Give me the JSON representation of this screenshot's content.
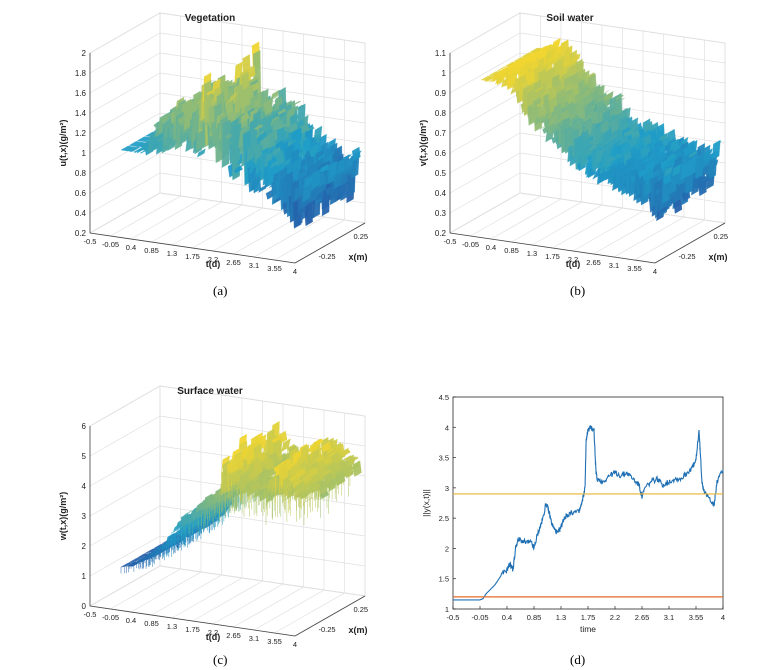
{
  "captions": {
    "a": "(a)",
    "b": "(b)",
    "c": "(c)",
    "d": "(d)"
  },
  "colors": {
    "surface_low": "#2c2a8f",
    "surface_mid": "#1f9ec9",
    "surface_high": "#f2d630",
    "line_blue": "#1f6fb4",
    "line_yellow": "#eab530",
    "line_orange": "#e46a2a",
    "grid": "#e0e0e0",
    "axis": "#444444"
  },
  "chart_data": [
    {
      "id": "a",
      "type": "area",
      "title": "Vegetation",
      "xlabel": "t(d)",
      "ylabel": "x(m)",
      "zlabel": "u(t,x)(g/m²)",
      "x_ticks": [
        "-0.5",
        "-0.05",
        "0.4",
        "0.85",
        "1.3",
        "1.75",
        "2.2",
        "2.65",
        "3.1",
        "3.55",
        "4"
      ],
      "y_ticks": [
        "-0.25",
        "0.25"
      ],
      "z_ticks": [
        "0.2",
        "0.4",
        "0.6",
        "0.8",
        "1",
        "1.2",
        "1.4",
        "1.6",
        "1.8",
        "2"
      ],
      "xlim": [
        -0.5,
        4
      ],
      "zlim": [
        0.2,
        2
      ],
      "grid": true,
      "profile": {
        "t": [
          -0.05,
          0.1,
          0.3,
          0.5,
          0.7,
          0.85,
          1.0,
          1.2,
          1.4,
          1.6,
          1.75,
          1.9,
          2.1,
          2.3,
          2.5,
          2.7,
          2.9,
          3.1,
          3.3,
          3.5,
          3.7,
          3.85,
          4.0
        ],
        "mean": [
          1.0,
          1.0,
          1.0,
          1.05,
          1.15,
          1.2,
          1.25,
          1.3,
          1.35,
          1.3,
          1.4,
          1.35,
          1.3,
          1.25,
          1.15,
          1.05,
          1.0,
          0.95,
          0.9,
          0.85,
          0.8,
          0.75,
          1.0
        ],
        "max": [
          1.0,
          1.0,
          1.02,
          1.15,
          1.35,
          1.45,
          1.55,
          1.5,
          1.6,
          1.5,
          1.95,
          1.7,
          1.55,
          1.5,
          1.5,
          1.4,
          1.3,
          1.2,
          1.15,
          1.05,
          1.0,
          0.9,
          1.05
        ],
        "min": [
          1.0,
          1.0,
          0.98,
          0.95,
          0.95,
          1.0,
          1.0,
          1.05,
          1.05,
          1.0,
          1.0,
          0.95,
          0.95,
          0.85,
          0.8,
          0.75,
          0.7,
          0.65,
          0.6,
          0.55,
          0.45,
          0.4,
          0.9
        ]
      }
    },
    {
      "id": "b",
      "type": "area",
      "title": "Soil water",
      "xlabel": "t(d)",
      "ylabel": "x(m)",
      "zlabel": "v(t,x)(g/m²)",
      "x_ticks": [
        "-0.5",
        "-0.05",
        "0.4",
        "0.85",
        "1.3",
        "1.75",
        "2.2",
        "2.65",
        "3.1",
        "3.55",
        "4"
      ],
      "y_ticks": [
        "-0.25",
        "0.25"
      ],
      "z_ticks": [
        "0.2",
        "0.3",
        "0.4",
        "0.5",
        "0.6",
        "0.7",
        "0.8",
        "0.9",
        "1",
        "1.1"
      ],
      "xlim": [
        -0.5,
        4
      ],
      "zlim": [
        0.2,
        1.1
      ],
      "grid": true,
      "profile": {
        "t": [
          -0.05,
          0.1,
          0.3,
          0.5,
          0.7,
          0.85,
          1.0,
          1.2,
          1.4,
          1.6,
          1.75,
          1.9,
          2.1,
          2.3,
          2.5,
          2.7,
          2.9,
          3.1,
          3.3,
          3.5,
          3.7,
          3.85,
          4.0
        ],
        "mean": [
          0.95,
          0.95,
          0.96,
          0.97,
          0.95,
          0.9,
          0.85,
          0.8,
          0.77,
          0.74,
          0.72,
          0.68,
          0.66,
          0.63,
          0.61,
          0.6,
          0.58,
          0.56,
          0.55,
          0.53,
          0.52,
          0.5,
          0.6
        ],
        "max": [
          0.95,
          0.96,
          1.0,
          1.05,
          1.02,
          0.98,
          0.93,
          0.88,
          0.85,
          0.82,
          0.82,
          0.77,
          0.73,
          0.7,
          0.69,
          0.68,
          0.66,
          0.65,
          0.64,
          0.62,
          0.62,
          0.58,
          0.65
        ],
        "min": [
          0.95,
          0.94,
          0.93,
          0.9,
          0.86,
          0.8,
          0.74,
          0.7,
          0.67,
          0.64,
          0.6,
          0.57,
          0.55,
          0.52,
          0.5,
          0.49,
          0.48,
          0.46,
          0.44,
          0.42,
          0.38,
          0.35,
          0.55
        ]
      }
    },
    {
      "id": "c",
      "type": "area",
      "title": "Surface water",
      "xlabel": "t(d)",
      "ylabel": "x(m)",
      "zlabel": "w(t,x)(g/m²)",
      "x_ticks": [
        "-0.5",
        "-0.05",
        "0.4",
        "0.85",
        "1.3",
        "1.75",
        "2.2",
        "2.65",
        "3.1",
        "3.55",
        "4"
      ],
      "y_ticks": [
        "-0.25",
        "0.25"
      ],
      "z_ticks": [
        "0",
        "1",
        "2",
        "3",
        "4",
        "5",
        "6"
      ],
      "xlim": [
        -0.5,
        4
      ],
      "zlim": [
        0,
        6
      ],
      "grid": true,
      "profile": {
        "t": [
          -0.05,
          0.2,
          0.4,
          0.6,
          0.85,
          1.0,
          1.2,
          1.3,
          1.5,
          1.75,
          1.9,
          2.1,
          2.2,
          2.4,
          2.65,
          2.9,
          3.1,
          3.3,
          3.55,
          3.8,
          4.0
        ],
        "mean": [
          1.2,
          1.3,
          1.5,
          1.7,
          2.0,
          2.3,
          2.7,
          3.0,
          3.2,
          3.6,
          3.8,
          4.0,
          4.3,
          4.5,
          4.4,
          4.4,
          4.2,
          4.4,
          4.6,
          4.6,
          4.3
        ],
        "max": [
          1.2,
          1.35,
          1.6,
          1.85,
          2.2,
          2.5,
          3.0,
          3.3,
          3.4,
          3.9,
          4.1,
          4.2,
          5.8,
          5.2,
          4.7,
          4.6,
          4.6,
          5.7,
          5.2,
          4.9,
          4.6
        ],
        "min": [
          1.2,
          1.25,
          1.4,
          1.6,
          1.85,
          2.1,
          2.5,
          2.8,
          3.0,
          3.3,
          3.5,
          3.8,
          4.0,
          4.2,
          4.1,
          4.1,
          3.9,
          4.0,
          4.2,
          4.3,
          4.0
        ]
      }
    },
    {
      "id": "d",
      "type": "line",
      "title": "",
      "xlabel": "time",
      "ylabel": "||y(x,t)||",
      "x_ticks": [
        "-0.5",
        "-0.05",
        "0.4",
        "0.85",
        "1.3",
        "1.75",
        "2.2",
        "2.65",
        "3.1",
        "3.55",
        "4"
      ],
      "y_ticks": [
        "1",
        "1.5",
        "2",
        "2.5",
        "3",
        "3.5",
        "4",
        "4.5"
      ],
      "xlim": [
        -0.5,
        4
      ],
      "ylim": [
        1,
        4.5
      ],
      "grid": false,
      "series": [
        {
          "x": [
            -0.5,
            -0.05,
            0.0,
            0.05,
            0.1,
            0.2,
            0.3,
            0.4,
            0.45,
            0.5,
            0.55,
            0.6,
            0.7,
            0.8,
            0.85,
            0.9,
            0.95,
            1.0,
            1.05,
            1.1,
            1.15,
            1.2,
            1.25,
            1.3,
            1.35,
            1.4,
            1.5,
            1.6,
            1.65,
            1.7,
            1.72,
            1.75,
            1.8,
            1.85,
            1.88,
            1.9,
            2.0,
            2.1,
            2.2,
            2.3,
            2.4,
            2.5,
            2.6,
            2.65,
            2.7,
            2.8,
            2.9,
            3.0,
            3.1,
            3.2,
            3.3,
            3.4,
            3.5,
            3.55,
            3.6,
            3.62,
            3.65,
            3.7,
            3.8,
            3.85,
            3.9,
            4.0
          ],
          "y": [
            1.15,
            1.15,
            1.17,
            1.25,
            1.3,
            1.4,
            1.55,
            1.65,
            1.75,
            1.65,
            2.05,
            2.15,
            2.1,
            2.1,
            2.0,
            2.2,
            2.35,
            2.5,
            2.75,
            2.6,
            2.4,
            2.3,
            2.25,
            2.35,
            2.5,
            2.55,
            2.6,
            2.6,
            2.75,
            3.0,
            3.8,
            3.95,
            4.0,
            3.95,
            3.3,
            3.15,
            3.1,
            3.2,
            3.25,
            3.2,
            3.25,
            3.15,
            3.05,
            2.85,
            3.0,
            3.1,
            3.15,
            3.05,
            3.1,
            3.15,
            3.15,
            3.25,
            3.35,
            3.45,
            3.95,
            3.6,
            3.1,
            2.9,
            2.8,
            2.7,
            3.1,
            3.3
          ]
        },
        {
          "x": [
            -0.5,
            4.0
          ],
          "y": [
            2.9,
            2.9
          ]
        },
        {
          "x": [
            -0.5,
            4.0
          ],
          "y": [
            1.2,
            1.2
          ]
        }
      ]
    }
  ]
}
